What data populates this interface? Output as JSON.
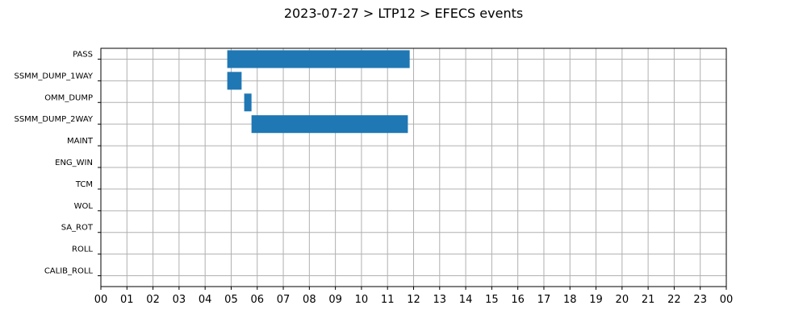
{
  "chart_data": {
    "type": "bar",
    "orientation": "horizontal-timeline",
    "title": "2023-07-27 > LTP12 > EFECS events",
    "xlabel": "",
    "ylabel": "",
    "grid": true,
    "xlim": [
      0,
      24
    ],
    "x_tick_labels": [
      "00",
      "01",
      "02",
      "03",
      "04",
      "05",
      "06",
      "07",
      "08",
      "09",
      "10",
      "11",
      "12",
      "13",
      "14",
      "15",
      "16",
      "17",
      "18",
      "19",
      "20",
      "21",
      "22",
      "23",
      "00"
    ],
    "categories": [
      "PASS",
      "SSMM_DUMP_1WAY",
      "OMM_DUMP",
      "SSMM_DUMP_2WAY",
      "MAINT",
      "ENG_WIN",
      "TCM",
      "WOL",
      "SA_ROT",
      "ROLL",
      "CALIB_ROLL"
    ],
    "bar_color": "#1f77b4",
    "events": [
      {
        "category": "PASS",
        "start": 4.85,
        "end": 11.85
      },
      {
        "category": "SSMM_DUMP_1WAY",
        "start": 4.85,
        "end": 5.4
      },
      {
        "category": "OMM_DUMP",
        "start": 5.5,
        "end": 5.78
      },
      {
        "category": "SSMM_DUMP_2WAY",
        "start": 5.78,
        "end": 11.78
      }
    ]
  }
}
